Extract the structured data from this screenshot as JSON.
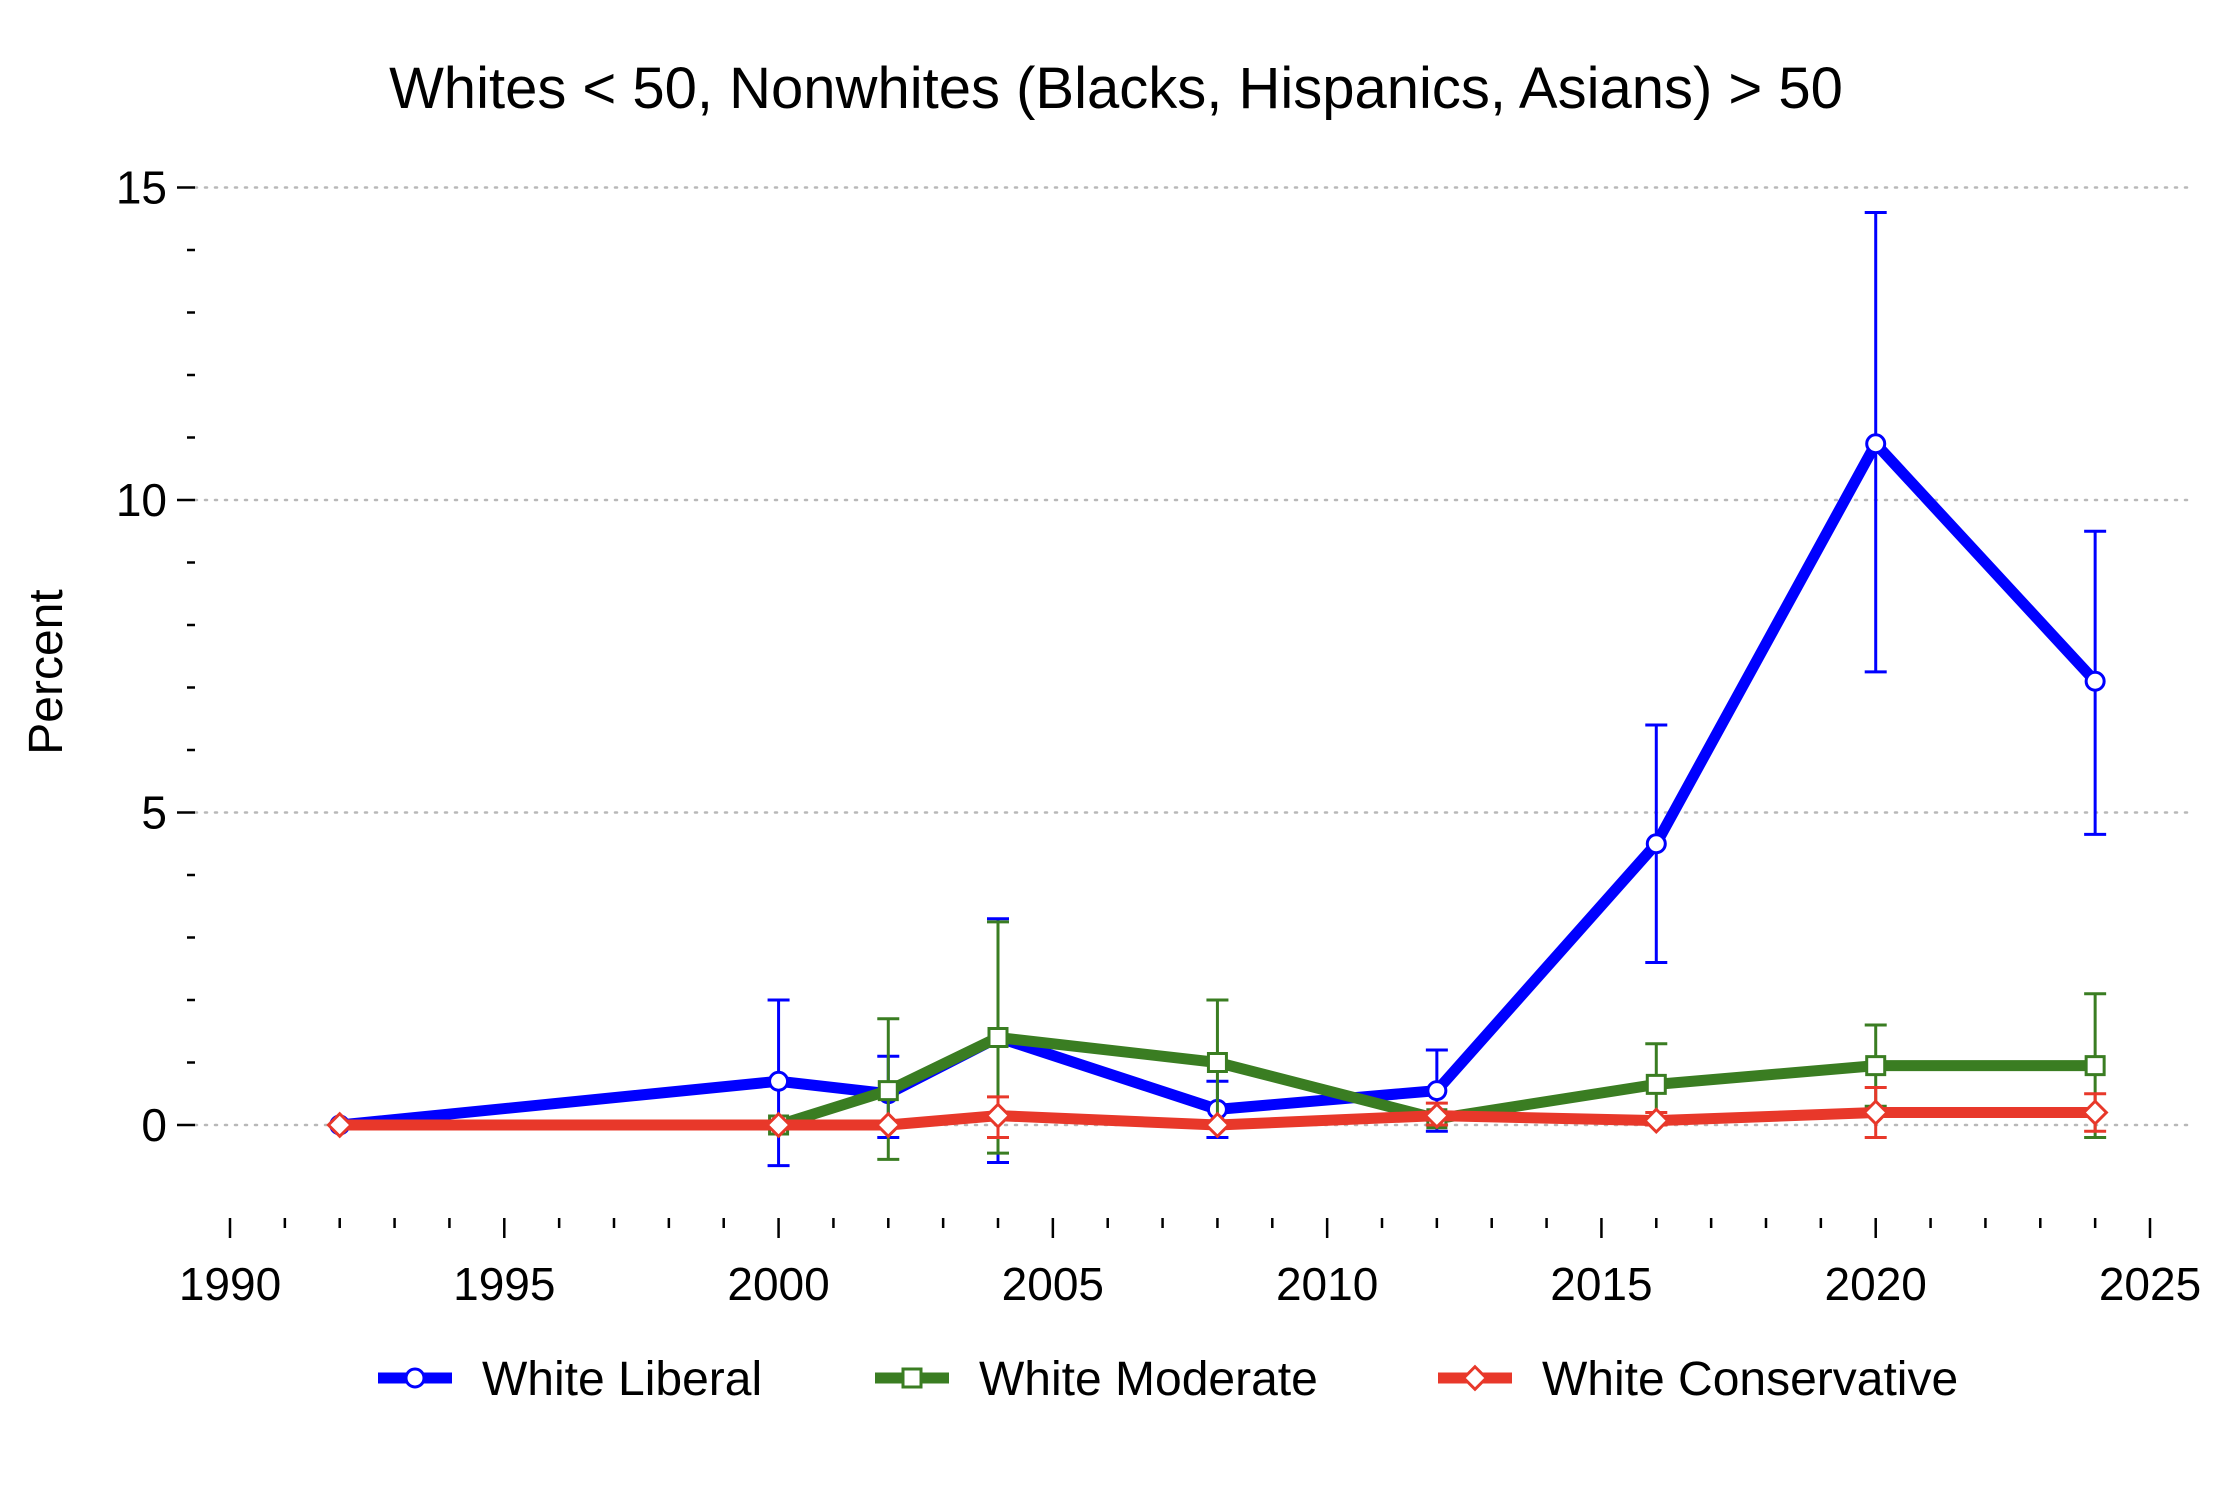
{
  "chart_data": {
    "type": "line",
    "title": "Whites < 50, Nonwhites (Blacks, Hispanics, Asians) > 50",
    "ylabel": "Percent",
    "xlabel": "",
    "xlim": [
      1990,
      2025
    ],
    "ylim": [
      -1.2,
      15.6
    ],
    "x_ticks": [
      1990,
      1995,
      2000,
      2005,
      2010,
      2015,
      2020,
      2025
    ],
    "x_minor_step": 1,
    "y_ticks": [
      0,
      5,
      10,
      15
    ],
    "y_minor_step": 1,
    "grid": "horizontal-dotted",
    "legend_position": "bottom",
    "series": [
      {
        "name": "White Liberal",
        "color": "#0000ff",
        "marker": "circle",
        "points": [
          {
            "x": 1992,
            "y": 0,
            "lo": 0,
            "hi": 0
          },
          {
            "x": 2000,
            "y": 0.7,
            "lo": -0.65,
            "hi": 2.0
          },
          {
            "x": 2002,
            "y": 0.5,
            "lo": -0.2,
            "hi": 1.1
          },
          {
            "x": 2004,
            "y": 1.4,
            "lo": -0.6,
            "hi": 3.3
          },
          {
            "x": 2008,
            "y": 0.25,
            "lo": -0.2,
            "hi": 0.7
          },
          {
            "x": 2012,
            "y": 0.55,
            "lo": -0.1,
            "hi": 1.2
          },
          {
            "x": 2016,
            "y": 4.5,
            "lo": 2.6,
            "hi": 6.4
          },
          {
            "x": 2020,
            "y": 10.9,
            "lo": 7.25,
            "hi": 14.6
          },
          {
            "x": 2024,
            "y": 7.1,
            "lo": 4.65,
            "hi": 9.5
          }
        ]
      },
      {
        "name": "White Moderate",
        "color": "#3a7d22",
        "marker": "square",
        "points": [
          {
            "x": 2000,
            "y": 0,
            "lo": 0,
            "hi": 0
          },
          {
            "x": 2002,
            "y": 0.55,
            "lo": -0.55,
            "hi": 1.7
          },
          {
            "x": 2004,
            "y": 1.4,
            "lo": -0.45,
            "hi": 3.25
          },
          {
            "x": 2008,
            "y": 1.0,
            "lo": 0,
            "hi": 2.0
          },
          {
            "x": 2012,
            "y": 0.1,
            "lo": 0,
            "hi": 0.2
          },
          {
            "x": 2016,
            "y": 0.65,
            "lo": 0,
            "hi": 1.3
          },
          {
            "x": 2020,
            "y": 0.95,
            "lo": 0.3,
            "hi": 1.6
          },
          {
            "x": 2024,
            "y": 0.95,
            "lo": -0.2,
            "hi": 2.1
          }
        ]
      },
      {
        "name": "White Conservative",
        "color": "#e8382a",
        "marker": "diamond",
        "points": [
          {
            "x": 1992,
            "y": 0,
            "lo": 0,
            "hi": 0
          },
          {
            "x": 2000,
            "y": 0,
            "lo": 0,
            "hi": 0
          },
          {
            "x": 2002,
            "y": 0,
            "lo": 0,
            "hi": 0
          },
          {
            "x": 2004,
            "y": 0.15,
            "lo": -0.2,
            "hi": 0.45
          },
          {
            "x": 2008,
            "y": 0,
            "lo": 0,
            "hi": 0
          },
          {
            "x": 2012,
            "y": 0.15,
            "lo": 0,
            "hi": 0.35
          },
          {
            "x": 2016,
            "y": 0.07,
            "lo": 0,
            "hi": 0.2
          },
          {
            "x": 2020,
            "y": 0.2,
            "lo": -0.2,
            "hi": 0.6
          },
          {
            "x": 2024,
            "y": 0.2,
            "lo": -0.1,
            "hi": 0.5
          }
        ]
      }
    ]
  }
}
